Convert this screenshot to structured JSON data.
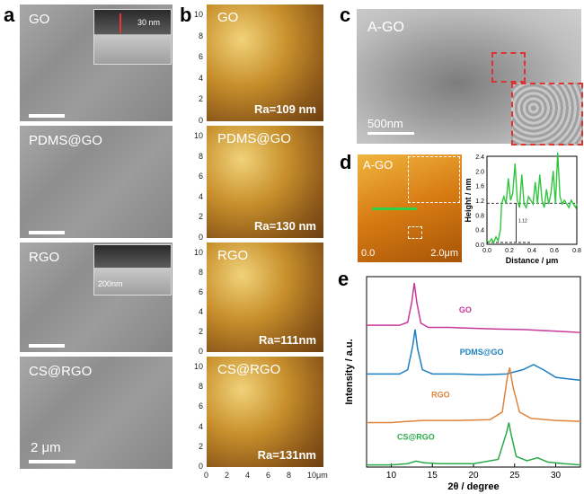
{
  "panel_labels": [
    "a",
    "b",
    "c",
    "d",
    "e"
  ],
  "panel_a": {
    "tiles": [
      {
        "title": "GO",
        "inset_label": "30 nm"
      },
      {
        "title": "PDMS@GO"
      },
      {
        "title": "RGO",
        "inset_label": "200nm"
      },
      {
        "title": "CS@RGO",
        "scale_label": "2 μm"
      }
    ]
  },
  "panel_b": {
    "tiles": [
      {
        "title": "GO",
        "ra": "Ra=109 nm"
      },
      {
        "title": "PDMS@GO",
        "ra": "Ra=130 nm"
      },
      {
        "title": "RGO",
        "ra": "Ra=111nm"
      },
      {
        "title": "CS@RGO",
        "ra": "Ra=131nm"
      }
    ],
    "y_ticks": [
      "0",
      "2",
      "4",
      "6",
      "8",
      "10"
    ],
    "x_ticks": [
      "0",
      "2",
      "4",
      "6",
      "8",
      "10μm"
    ]
  },
  "panel_c": {
    "title": "A-GO",
    "scale": "500nm"
  },
  "panel_d": {
    "image_title": "A-GO",
    "image_range_low": "0.0",
    "image_range_high": "2.0μm",
    "profile_annotation": "1.12",
    "chart_data": {
      "type": "line",
      "xlabel": "Distance / μm",
      "ylabel": "Height / nm",
      "xlim": [
        0,
        0.8
      ],
      "ylim": [
        0,
        2.4
      ],
      "x_ticks": [
        "0.0",
        "0.2",
        "0.4",
        "0.6",
        "0.8"
      ],
      "y_ticks": [
        "0.0",
        "0.4",
        "0.8",
        "1.2",
        "1.6",
        "2.0",
        "2.4"
      ],
      "series": [
        {
          "x": [
            0.0,
            0.02,
            0.04,
            0.06,
            0.08,
            0.1,
            0.12,
            0.13,
            0.15,
            0.17,
            0.19,
            0.21,
            0.23,
            0.25,
            0.27,
            0.29,
            0.31,
            0.33,
            0.35,
            0.37,
            0.39,
            0.41,
            0.43,
            0.45,
            0.47,
            0.49,
            0.51,
            0.53,
            0.55,
            0.57,
            0.59,
            0.61,
            0.63,
            0.65,
            0.67,
            0.69,
            0.71,
            0.73,
            0.75,
            0.77,
            0.79,
            0.8
          ],
          "y": [
            0.1,
            0.05,
            0.15,
            0.05,
            0.2,
            0.1,
            0.4,
            1.1,
            1.3,
            1.1,
            1.8,
            1.2,
            1.4,
            2.2,
            1.2,
            1.0,
            1.9,
            1.1,
            1.0,
            1.3,
            1.2,
            1.1,
            1.7,
            1.1,
            1.9,
            1.2,
            1.0,
            1.5,
            1.1,
            1.4,
            2.0,
            1.1,
            2.5,
            1.3,
            1.1,
            1.2,
            1.1,
            1.0,
            1.2,
            1.1,
            1.0,
            1.1
          ]
        }
      ]
    }
  },
  "panel_e": {
    "chart_data": {
      "type": "line",
      "xlabel": "2θ / degree",
      "ylabel": "Intensity / a.u.",
      "xlim": [
        7,
        33
      ],
      "x_ticks": [
        "10",
        "15",
        "20",
        "25",
        "30"
      ],
      "series": [
        {
          "name": "GO",
          "color": "#c8389a",
          "offset": 3.0,
          "x": [
            7,
            9,
            11,
            12,
            12.5,
            12.8,
            13.1,
            13.6,
            14.5,
            17,
            20,
            23,
            26,
            29,
            33
          ],
          "y": [
            0.35,
            0.35,
            0.35,
            0.42,
            0.9,
            1.35,
            0.9,
            0.4,
            0.3,
            0.3,
            0.28,
            0.26,
            0.25,
            0.22,
            0.18
          ]
        },
        {
          "name": "PDMS@GO",
          "color": "#1c7fbf",
          "offset": 2.0,
          "x": [
            7,
            9,
            11,
            12,
            12.6,
            12.9,
            13.2,
            13.8,
            15,
            18,
            21,
            24,
            26,
            27.3,
            28.5,
            30,
            33
          ],
          "y": [
            0.2,
            0.2,
            0.2,
            0.3,
            0.85,
            1.25,
            0.8,
            0.3,
            0.2,
            0.2,
            0.18,
            0.2,
            0.3,
            0.42,
            0.3,
            0.12,
            0.05
          ]
        },
        {
          "name": "RGO",
          "color": "#e0823a",
          "offset": 1.0,
          "x": [
            7,
            10,
            12,
            14,
            18,
            22,
            23.5,
            24.1,
            24.4,
            24.8,
            25.6,
            27,
            30,
            33
          ],
          "y": [
            0.05,
            0.05,
            0.08,
            0.1,
            0.1,
            0.12,
            0.3,
            1.1,
            1.35,
            0.9,
            0.3,
            0.15,
            0.1,
            0.08
          ]
        },
        {
          "name": "CS@RGO",
          "color": "#2aab4a",
          "offset": 0.0,
          "x": [
            7,
            10,
            12,
            13,
            14,
            16,
            20,
            23,
            24,
            24.3,
            24.6,
            25.2,
            26.5,
            27.8,
            29,
            31,
            33
          ],
          "y": [
            0.05,
            0.05,
            0.08,
            0.14,
            0.1,
            0.08,
            0.08,
            0.18,
            0.8,
            1.05,
            0.75,
            0.25,
            0.15,
            0.22,
            0.12,
            0.08,
            0.05
          ]
        }
      ]
    }
  }
}
